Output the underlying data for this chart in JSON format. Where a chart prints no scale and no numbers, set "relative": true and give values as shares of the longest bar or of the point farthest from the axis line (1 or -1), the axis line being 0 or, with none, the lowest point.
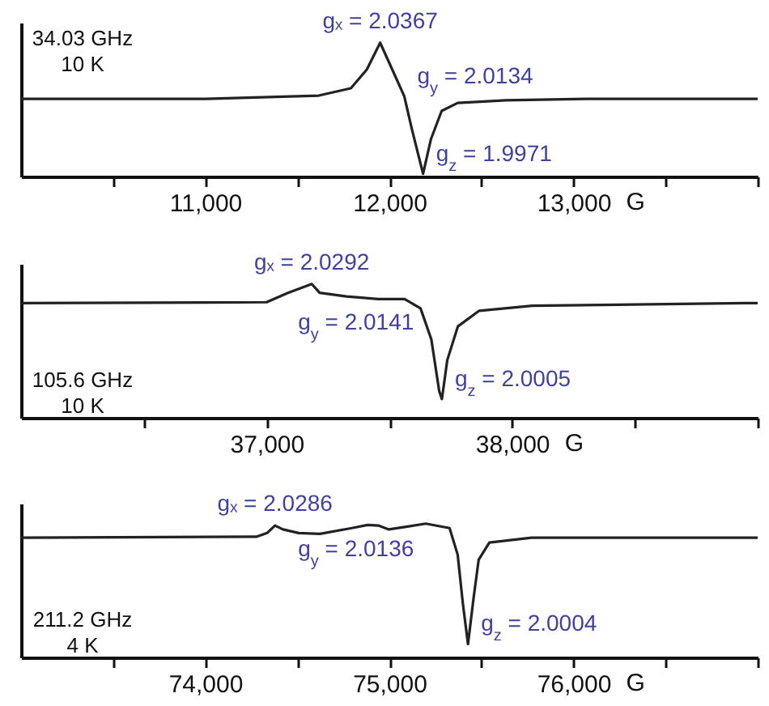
{
  "chart_data": [
    {
      "type": "line",
      "relative": true,
      "xlabel": "G",
      "xlim": [
        10000,
        14000
      ],
      "xticks": [
        {
          "value": 10500,
          "label": null
        },
        {
          "value": 11000,
          "label": "11,000"
        },
        {
          "value": 11500,
          "label": null
        },
        {
          "value": 12000,
          "label": "12,000"
        },
        {
          "value": 12500,
          "label": null
        },
        {
          "value": 13000,
          "label": "13,000"
        },
        {
          "value": 13500,
          "label": null
        },
        {
          "value": 14000,
          "label": null
        }
      ],
      "x": [
        10000,
        11000,
        11617,
        11791,
        11878,
        11950,
        12009,
        12081,
        12123,
        12183,
        12226,
        12284,
        12371,
        12632,
        13067,
        14000
      ],
      "series": [
        {
          "color": "#222222",
          "values": [
            0.58,
            0.58,
            0.605,
            0.66,
            0.8,
            1.0,
            0.82,
            0.6,
            0.35,
            0.02,
            0.28,
            0.49,
            0.55,
            0.57,
            0.58,
            0.58
          ]
        }
      ],
      "annotations": [
        "34.03 GHz\n10 K",
        {
          "text": "gₓ = 2.0367",
          "x": 11950,
          "y": 1.0
        },
        {
          "text": "g$_{y}$ = 2.0134",
          "x": 12081,
          "y": 0.6
        },
        {
          "text": "g$_{z}$ = 1.9971",
          "x": 12183,
          "y": 0.02
        }
      ]
    },
    {
      "type": "line",
      "relative": true,
      "xlabel": "G",
      "xlim": [
        36000,
        39000
      ],
      "xticks": [
        {
          "value": 36500,
          "label": null
        },
        {
          "value": 37000,
          "label": "37,000"
        },
        {
          "value": 37500,
          "label": null
        },
        {
          "value": 38000,
          "label": "38,000"
        },
        {
          "value": 38500,
          "label": null
        },
        {
          "value": 39000,
          "label": null
        }
      ],
      "x": [
        36000,
        37000,
        37087,
        37184,
        37216,
        37325,
        37455,
        37562,
        37627,
        37671,
        37703,
        37714,
        37736,
        37779,
        37866,
        38082,
        38948,
        39000
      ],
      "series": [
        {
          "color": "#222222",
          "values": [
            0.857,
            0.864,
            0.934,
            1.0,
            0.934,
            0.907,
            0.888,
            0.888,
            0.818,
            0.586,
            0.2,
            0.14,
            0.432,
            0.683,
            0.8,
            0.838,
            0.857,
            0.857
          ]
        }
      ],
      "annotations": [
        "105.6 GHz\n10 K",
        {
          "text": "gₓ = 2.0292",
          "x": 37184,
          "y": 1.0
        },
        {
          "text": "g$_{y}$ = 2.0141",
          "x": 37455,
          "y": 0.888
        },
        {
          "text": "g$_{z}$ = 2.0005",
          "x": 37714,
          "y": 0.14
        }
      ]
    },
    {
      "type": "line",
      "relative": true,
      "xlabel": "G",
      "xlim": [
        73000,
        77000
      ],
      "xticks": [
        {
          "value": 73500,
          "label": null
        },
        {
          "value": 74000,
          "label": "74,000"
        },
        {
          "value": 74500,
          "label": null
        },
        {
          "value": 75000,
          "label": "75,000"
        },
        {
          "value": 75500,
          "label": null
        },
        {
          "value": 76000,
          "label": "76,000"
        },
        {
          "value": 76500,
          "label": null
        },
        {
          "value": 77000,
          "label": null
        }
      ],
      "x": [
        73000,
        74278,
        74336,
        74379,
        74422,
        74508,
        74623,
        74796,
        74882,
        74940,
        74997,
        75083,
        75198,
        75327,
        75371,
        75399,
        75427,
        75457,
        75485,
        75543,
        75772,
        77000
      ],
      "series": [
        {
          "color": "#222222",
          "values": [
            0.895,
            0.902,
            0.93,
            0.986,
            0.957,
            0.93,
            0.924,
            0.967,
            0.99,
            0.986,
            0.957,
            0.975,
            1.0,
            0.967,
            0.768,
            0.405,
            0.1,
            0.44,
            0.73,
            0.859,
            0.895,
            0.895
          ]
        }
      ],
      "annotations": [
        "211.2 GHz\n4 K",
        {
          "text": "gₓ = 2.0286",
          "x": 74379,
          "y": 0.986
        },
        {
          "text": "g$_{y}$ = 2.0136",
          "x": 74940,
          "y": 0.986
        },
        {
          "text": "g$_{z}$ = 2.0004",
          "x": 75427,
          "y": 0.1
        }
      ]
    }
  ]
}
